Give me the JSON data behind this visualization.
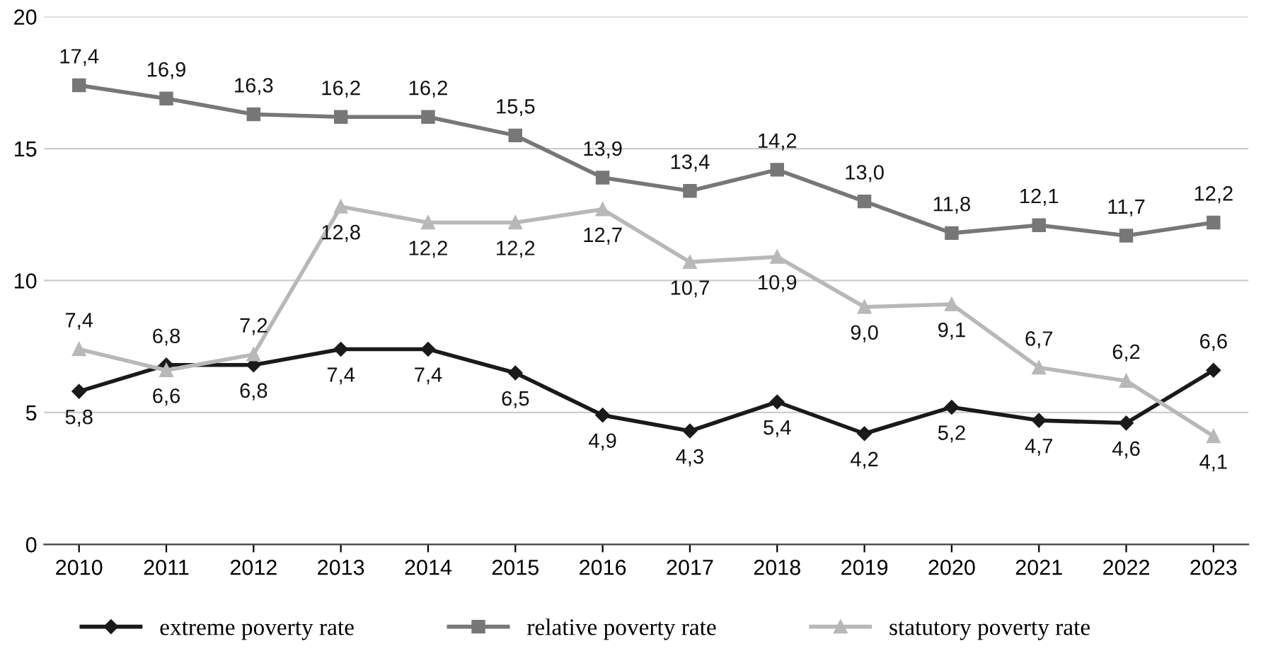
{
  "chart_data": {
    "type": "line",
    "categories": [
      "2010",
      "2011",
      "2012",
      "2013",
      "2014",
      "2015",
      "2016",
      "2017",
      "2018",
      "2019",
      "2020",
      "2021",
      "2022",
      "2023"
    ],
    "ylim": [
      0,
      20
    ],
    "yticks": [
      0,
      5,
      10,
      15,
      20
    ],
    "grid": "y",
    "legend": "bottom",
    "series": [
      {
        "name": "extreme poverty rate",
        "color": "#1a1a1a",
        "marker": "diamond",
        "values": [
          5.8,
          6.8,
          6.8,
          7.4,
          7.4,
          6.5,
          4.9,
          4.3,
          5.4,
          4.2,
          5.2,
          4.7,
          4.6,
          6.6
        ],
        "value_labels": [
          "5,8",
          "6,8",
          "6,8",
          "7,4",
          "7,4",
          "6,5",
          "4,9",
          "4,3",
          "5,4",
          "4,2",
          "5,2",
          "4,7",
          "4,6",
          "6,6"
        ]
      },
      {
        "name": "relative poverty rate",
        "color": "#777777",
        "marker": "square",
        "values": [
          17.4,
          16.9,
          16.3,
          16.2,
          16.2,
          15.5,
          13.9,
          13.4,
          14.2,
          13.0,
          11.8,
          12.1,
          11.7,
          12.2
        ],
        "value_labels": [
          "17,4",
          "16,9",
          "16,3",
          "16,2",
          "16,2",
          "15,5",
          "13,9",
          "13,4",
          "14,2",
          "13,0",
          "11,8",
          "12,1",
          "11,7",
          "12,2"
        ]
      },
      {
        "name": "statutory poverty rate",
        "color": "#b8b8b8",
        "marker": "triangle",
        "values": [
          7.4,
          6.6,
          7.2,
          12.8,
          12.2,
          12.2,
          12.7,
          10.7,
          10.9,
          9.0,
          9.1,
          6.7,
          6.2,
          4.1
        ],
        "value_labels": [
          "7,4",
          "6,6",
          "7,2",
          "12,8",
          "12,2",
          "12,2",
          "12,7",
          "10,7",
          "10,9",
          "9,0",
          "9,1",
          "6,7",
          "6,2",
          "4,1"
        ]
      }
    ]
  }
}
